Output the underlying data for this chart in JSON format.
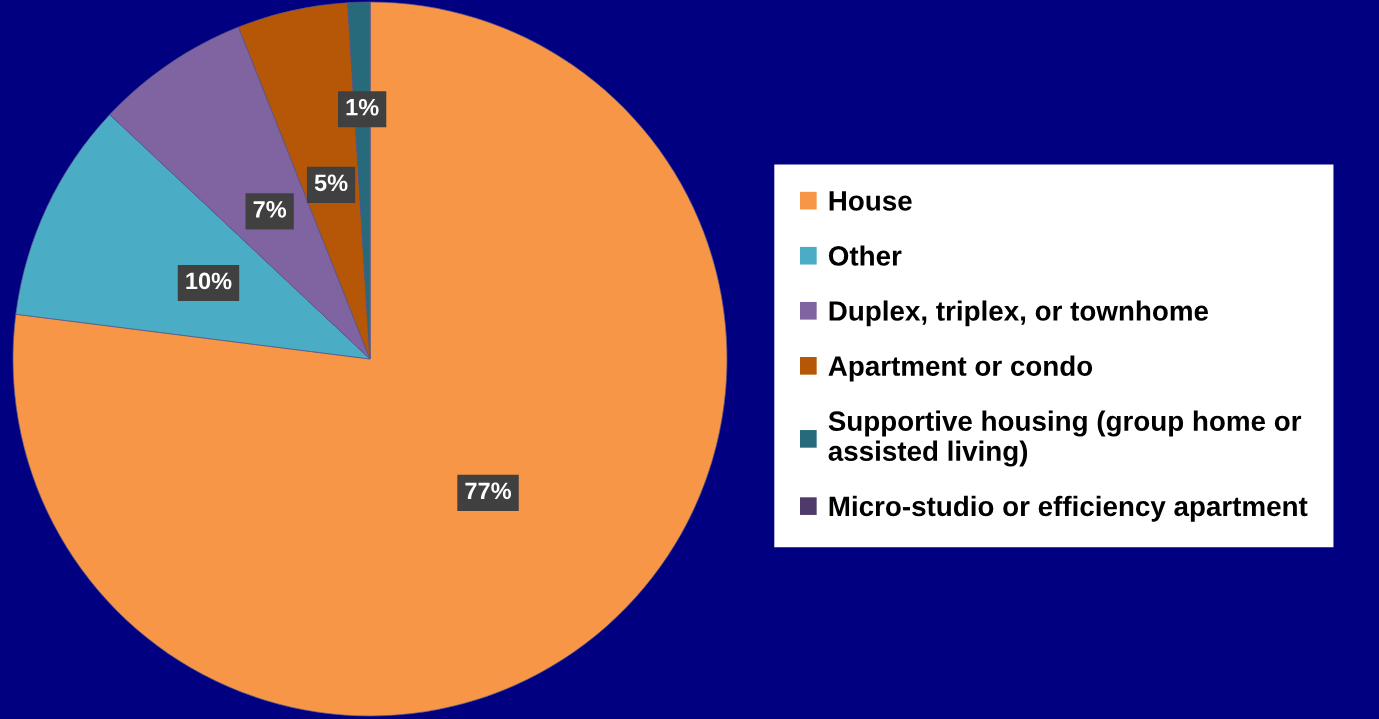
{
  "chart_data": {
    "type": "pie",
    "categories": [
      "House",
      "Other",
      "Duplex, triplex, or townhome",
      "Apartment or condo",
      "Supportive housing (group home or assisted living)",
      "Micro-studio or efficiency apartment"
    ],
    "values": [
      77,
      10,
      7,
      5,
      1,
      0
    ],
    "colors": [
      "#f79646",
      "#4bacc6",
      "#8064a2",
      "#b65708",
      "#276a7c",
      "#4f3b6b"
    ],
    "value_labels": [
      "77%",
      "10%",
      "7%",
      "5%",
      "1%",
      null
    ],
    "legend": "right"
  }
}
